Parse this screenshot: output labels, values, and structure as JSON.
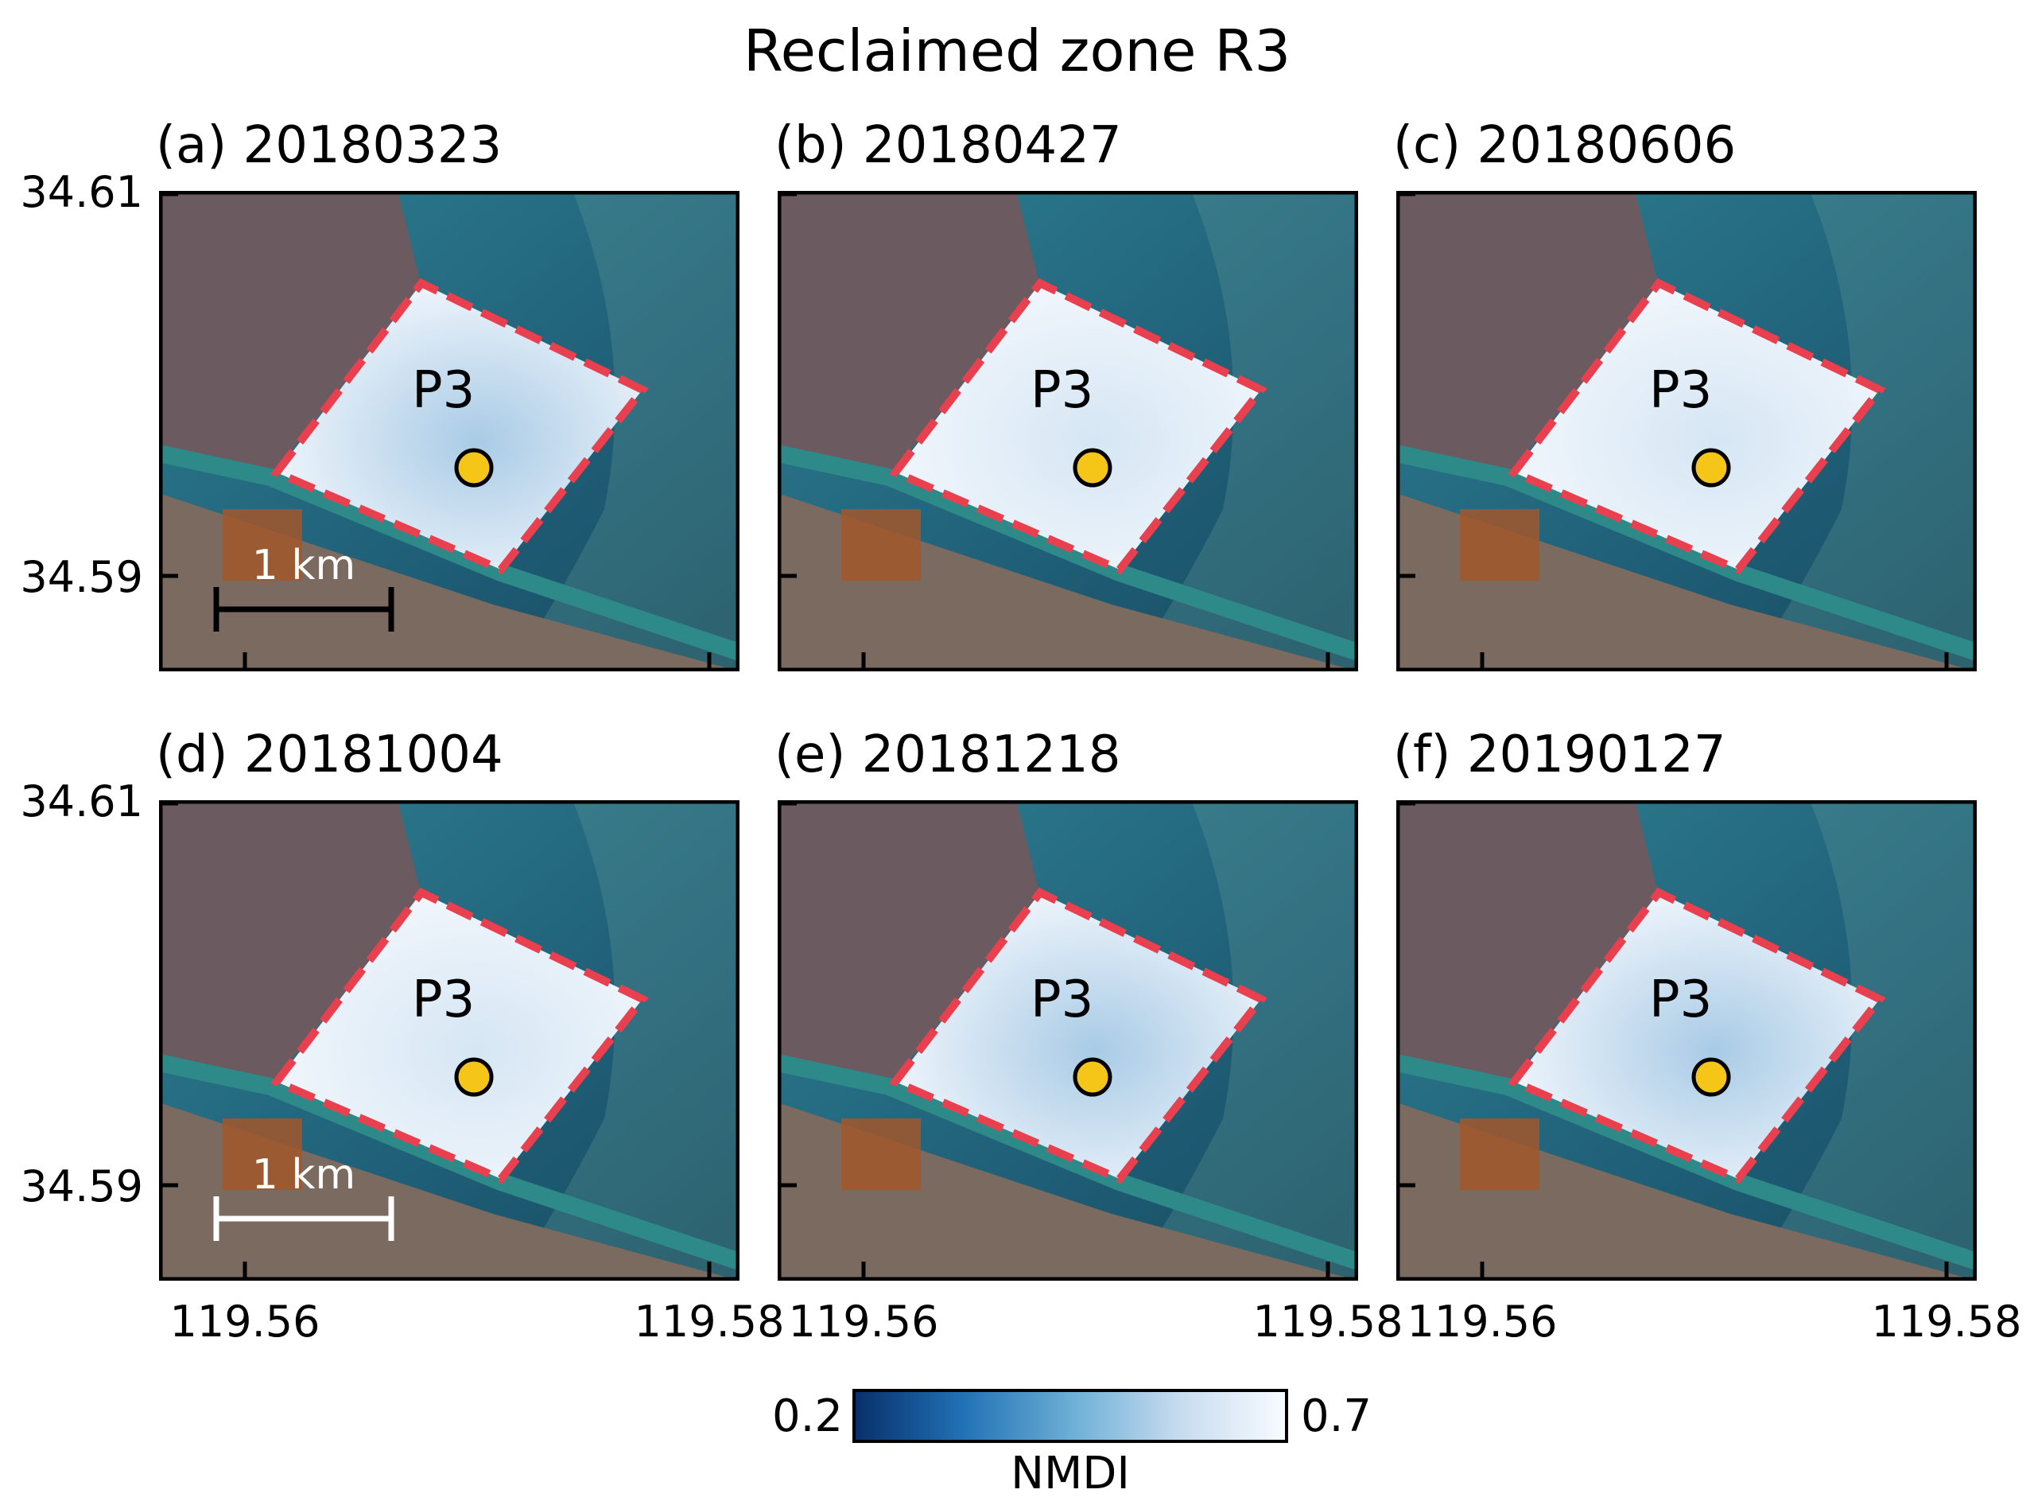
{
  "figure": {
    "title": "Reclaimed zone R3",
    "panels": [
      {
        "label": "(a) 20180323",
        "site": "P3",
        "scalebar": "1 km",
        "scalebar_color": "#000000",
        "tone": "mid"
      },
      {
        "label": "(b) 20180427",
        "site": "P3",
        "scalebar": "",
        "scalebar_color": "",
        "tone": "light"
      },
      {
        "label": "(c) 20180606",
        "site": "P3",
        "scalebar": "",
        "scalebar_color": "",
        "tone": "light"
      },
      {
        "label": "(d) 20181004",
        "site": "P3",
        "scalebar": "1 km",
        "scalebar_color": "#ffffff",
        "tone": "light"
      },
      {
        "label": "(e) 20181218",
        "site": "P3",
        "scalebar": "",
        "scalebar_color": "",
        "tone": "mid"
      },
      {
        "label": "(f) 20190127",
        "site": "P3",
        "scalebar": "",
        "scalebar_color": "",
        "tone": "mid"
      }
    ],
    "y_ticks": [
      "34.61",
      "34.59"
    ],
    "x_ticks": [
      "119.56",
      "119.58"
    ],
    "colorbar": {
      "label": "NMDI",
      "min": "0.2",
      "max": "0.7",
      "colormap": "Blues_r"
    },
    "colors": {
      "boundary": "#e8404f",
      "site_marker": "#f5c518",
      "sea": "#1f5f78",
      "land": "#6b5a60"
    }
  }
}
